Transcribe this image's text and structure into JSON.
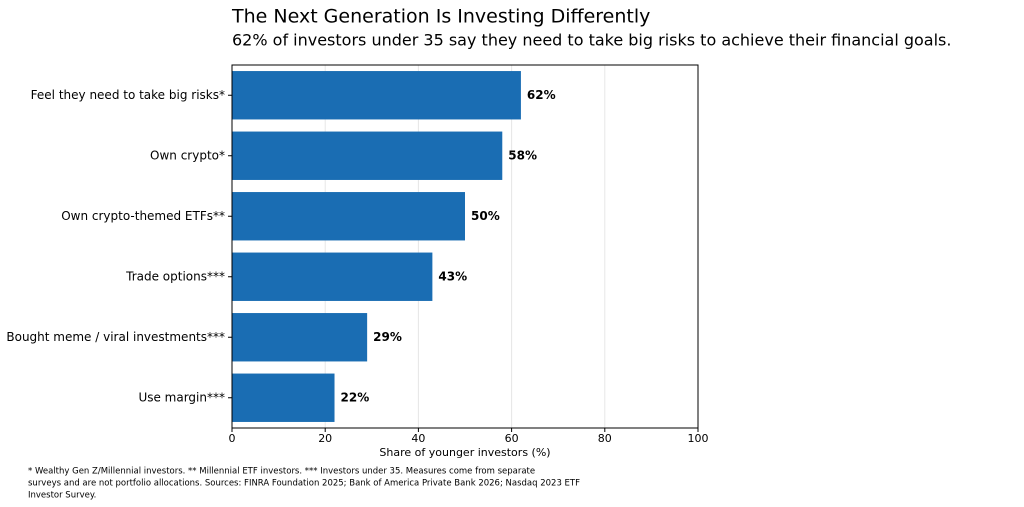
{
  "chart_data": {
    "type": "hbar",
    "title": "The Next Generation Is Investing Differently",
    "subtitle": "62% of investors under 35 say they need to take big risks to achieve their financial goals.",
    "categories": [
      "Feel they need to take big risks*",
      "Own crypto*",
      "Own crypto-themed ETFs**",
      "Trade options***",
      "Bought meme / viral investments***",
      "Use margin***"
    ],
    "values": [
      62,
      58,
      50,
      43,
      29,
      22
    ],
    "value_labels": [
      "62%",
      "58%",
      "50%",
      "43%",
      "29%",
      "22%"
    ],
    "color": "#1a6db3",
    "xlabel": "Share of younger investors (%)",
    "xlim": [
      0,
      100
    ],
    "xticks": [
      0,
      20,
      40,
      60,
      80,
      100
    ],
    "grid": true,
    "footnote": [
      "* Wealthy Gen Z/Millennial investors.  ** Millennial ETF investors.  *** Investors under 35. Measures come from separate",
      "surveys and are not portfolio allocations. Sources: FINRA Foundation 2025; Bank of America Private Bank 2026; Nasdaq 2023 ETF",
      "Investor Survey."
    ]
  }
}
